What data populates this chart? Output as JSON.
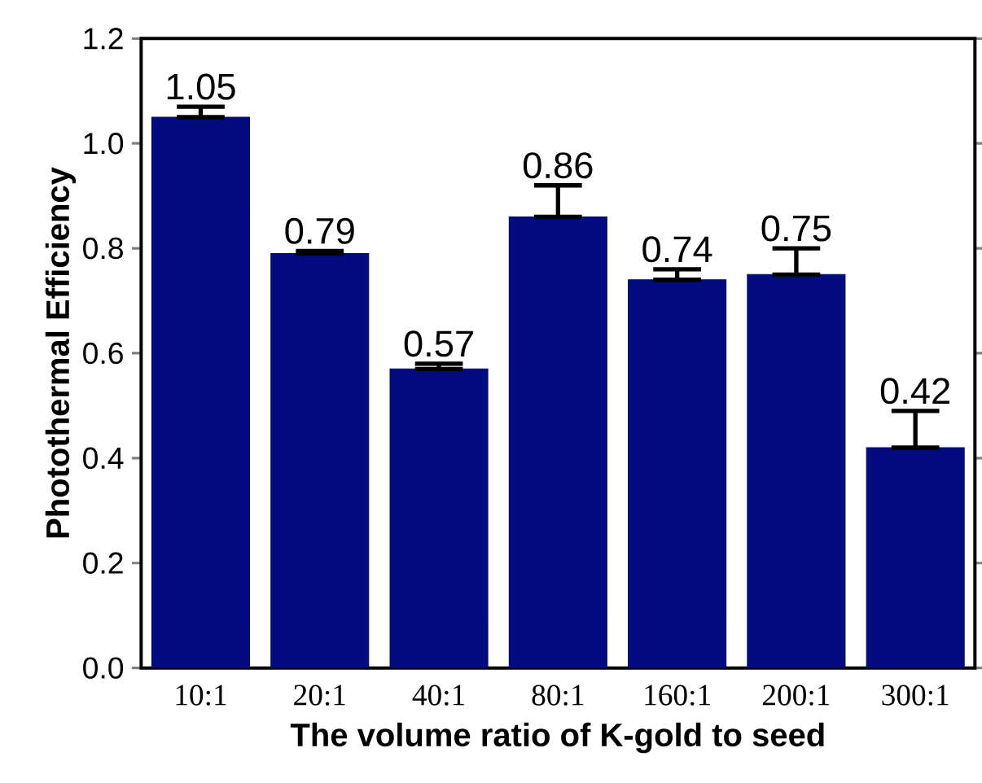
{
  "chart_data": {
    "type": "bar",
    "xlabel": "The volume ratio of K-gold to seed",
    "ylabel": "Photothermal Efficiency",
    "categories": [
      "10:1",
      "20:1",
      "40:1",
      "80:1",
      "160:1",
      "200:1",
      "300:1"
    ],
    "values": [
      1.05,
      0.79,
      0.57,
      0.86,
      0.74,
      0.75,
      0.42
    ],
    "errors": [
      [
        1.05,
        1.07
      ],
      [
        0.79,
        0.795
      ],
      [
        0.57,
        0.58
      ],
      [
        0.86,
        0.92
      ],
      [
        0.74,
        0.76
      ],
      [
        0.75,
        0.8
      ],
      [
        0.42,
        0.49
      ]
    ],
    "color": "#020c80",
    "data_labels": true,
    "grid": false,
    "ylim": [
      0,
      1.2
    ],
    "yticks": [
      {
        "value": 0,
        "label": "0.0"
      },
      0.2,
      0.4,
      0.6,
      0.8,
      {
        "value": 1,
        "label": "1.0"
      },
      1.2
    ]
  }
}
